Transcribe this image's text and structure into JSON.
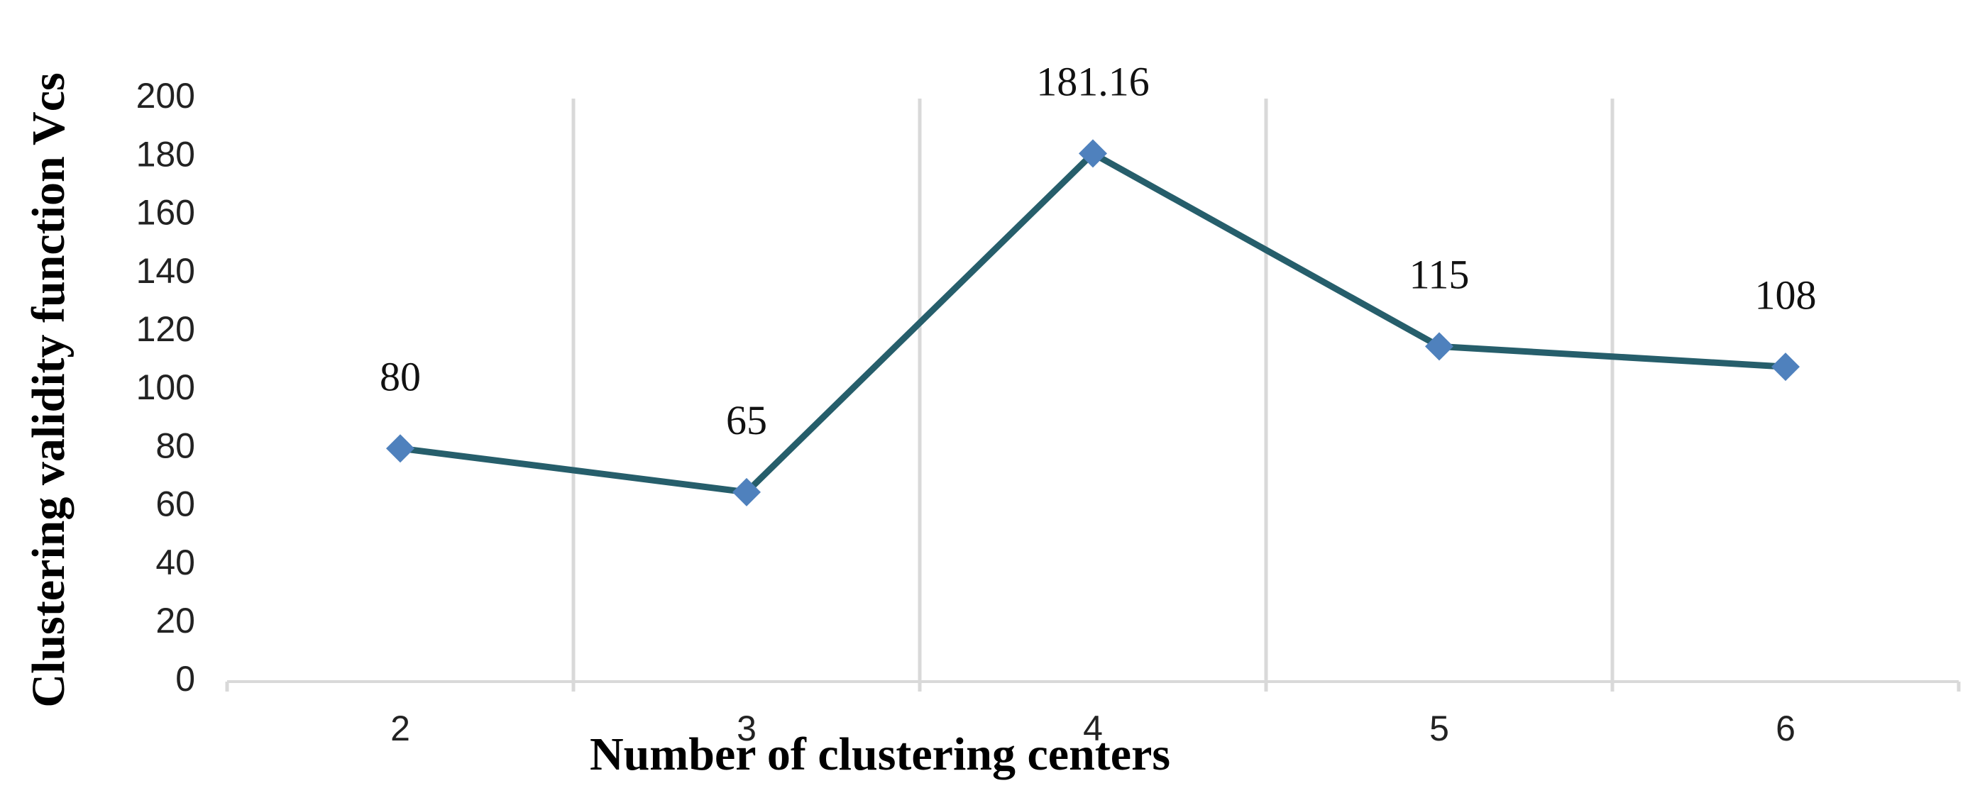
{
  "chart_data": {
    "type": "line",
    "y_label": "Clustering validity function Vcs",
    "x_label": "Number of clustering centers",
    "categories": [
      "2",
      "3",
      "4",
      "5",
      "6"
    ],
    "values": [
      80,
      65,
      181.16,
      115,
      108
    ],
    "color": "#265e6b",
    "marker_color": "#4f81bd",
    "ylim": [
      0,
      200
    ],
    "yticks": [
      0,
      20,
      40,
      60,
      80,
      100,
      120,
      140,
      160,
      180,
      200
    ],
    "grid": "x"
  }
}
